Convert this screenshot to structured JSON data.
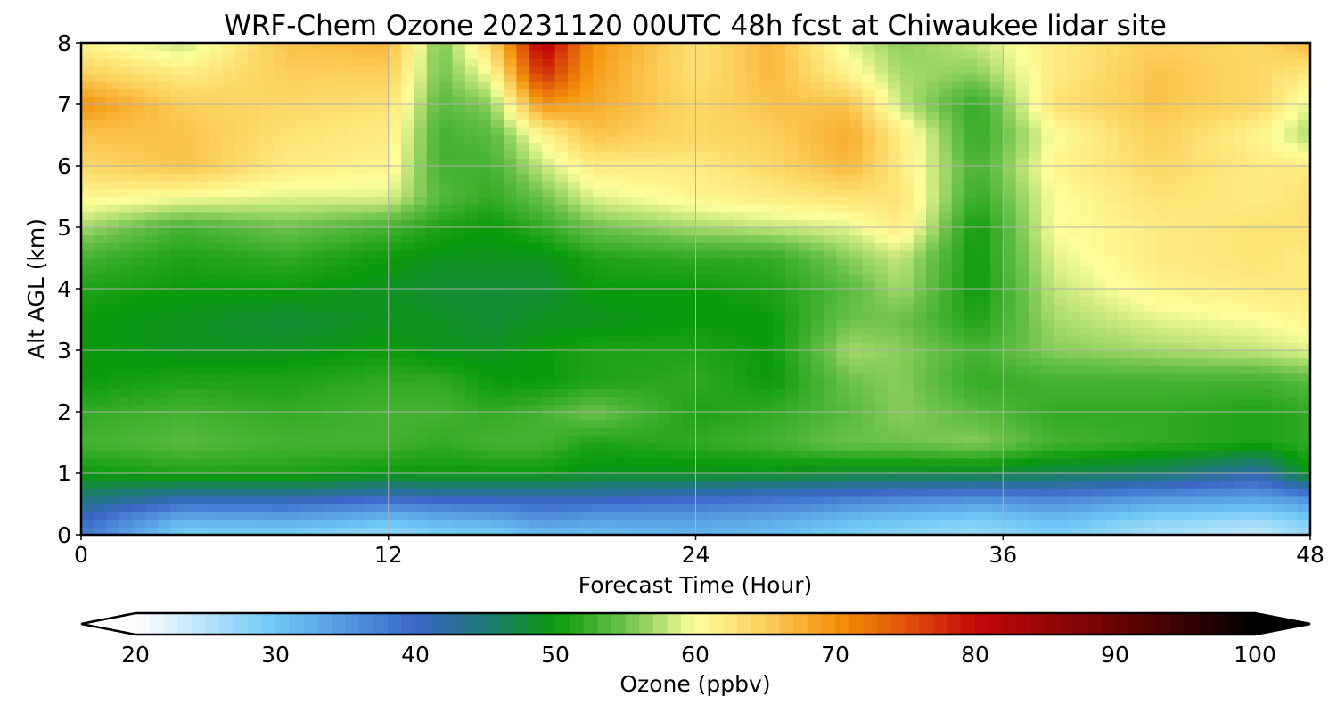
{
  "chart_data": {
    "type": "heatmap",
    "title": "WRF-Chem Ozone  20231120 00UTC 48h fcst at Chiwaukee lidar site",
    "xlabel": "Forecast Time (Hour)",
    "ylabel": "Alt AGL (km)",
    "xlim": [
      0,
      48
    ],
    "ylim": [
      0,
      8
    ],
    "x_ticks": [
      0,
      12,
      24,
      36,
      48
    ],
    "y_ticks": [
      0,
      1,
      2,
      3,
      4,
      5,
      6,
      7,
      8
    ],
    "grid": true,
    "colorbar": {
      "label": "Ozone  (ppbv)",
      "range": [
        20,
        100
      ],
      "ticks": [
        20,
        30,
        40,
        50,
        60,
        70,
        80,
        90,
        100
      ],
      "extend": "both",
      "stops": [
        {
          "v": 20,
          "c": "#ffffff"
        },
        {
          "v": 30,
          "c": "#6ec8f5"
        },
        {
          "v": 40,
          "c": "#3a66c8"
        },
        {
          "v": 45,
          "c": "#1f7a78"
        },
        {
          "v": 50,
          "c": "#0a9a0a"
        },
        {
          "v": 55,
          "c": "#6cc24a"
        },
        {
          "v": 60,
          "c": "#ffff9a"
        },
        {
          "v": 65,
          "c": "#fccf5a"
        },
        {
          "v": 70,
          "c": "#f4930a"
        },
        {
          "v": 75,
          "c": "#e0540a"
        },
        {
          "v": 80,
          "c": "#c40808"
        },
        {
          "v": 90,
          "c": "#6a0404"
        },
        {
          "v": 100,
          "c": "#000000"
        }
      ]
    },
    "x_hours": [
      0,
      4,
      8,
      12,
      14,
      16,
      18,
      20,
      24,
      27,
      30,
      32,
      35,
      38,
      42,
      46,
      48
    ],
    "y_km": [
      0,
      0.25,
      0.6,
      1,
      1.5,
      2,
      2.5,
      3,
      3.5,
      4,
      4.5,
      5,
      5.5,
      6,
      6.5,
      7,
      7.5,
      8
    ],
    "ozone_ppbv": [
      [
        38,
        29,
        29,
        27,
        29,
        29,
        31,
        31,
        32,
        31,
        29,
        28,
        27,
        29,
        26,
        24,
        27
      ],
      [
        40,
        32,
        33,
        31,
        32,
        33,
        35,
        34,
        34,
        33,
        31,
        30,
        29,
        31,
        28,
        27,
        29
      ],
      [
        45,
        42,
        42,
        40,
        41,
        41,
        41,
        41,
        40,
        39,
        38,
        37,
        36,
        37,
        35,
        34,
        36
      ],
      [
        50,
        51,
        51,
        50,
        50,
        50,
        50,
        49,
        49,
        49,
        48,
        48,
        48,
        47,
        46,
        42,
        50
      ],
      [
        53,
        54,
        53,
        53,
        52,
        53,
        53,
        51,
        52,
        53,
        55,
        55,
        56,
        53,
        52,
        51,
        52
      ],
      [
        52,
        53,
        52,
        53,
        53,
        52,
        53,
        55,
        51,
        52,
        54,
        56,
        54,
        52,
        52,
        51,
        52
      ],
      [
        50,
        51,
        51,
        52,
        52,
        50,
        50,
        51,
        52,
        50,
        55,
        56,
        52,
        53,
        53,
        53,
        54
      ],
      [
        50,
        49,
        49,
        50,
        49,
        49,
        50,
        51,
        51,
        50,
        57,
        56,
        53,
        56,
        57,
        58,
        59
      ],
      [
        50,
        49,
        48,
        49,
        49,
        48,
        49,
        49,
        50,
        50,
        55,
        55,
        51,
        57,
        59,
        60,
        61
      ],
      [
        51,
        50,
        50,
        49,
        48,
        48,
        48,
        50,
        50,
        51,
        54,
        57,
        50,
        58,
        61,
        62,
        62
      ],
      [
        53,
        51,
        52,
        50,
        49,
        49,
        49,
        51,
        52,
        52,
        56,
        58,
        50,
        59,
        62,
        63,
        62
      ],
      [
        57,
        53,
        55,
        53,
        51,
        50,
        52,
        55,
        57,
        58,
        59,
        62,
        50,
        60,
        62,
        63,
        63
      ],
      [
        61,
        60,
        59,
        59,
        54,
        52,
        55,
        59,
        61,
        62,
        63,
        63,
        52,
        60,
        63,
        62,
        63
      ],
      [
        64,
        66,
        62,
        61,
        53,
        53,
        58,
        62,
        62,
        64,
        67,
        62,
        53,
        61,
        64,
        62,
        62
      ],
      [
        66,
        66,
        63,
        62,
        53,
        54,
        61,
        66,
        64,
        65,
        68,
        62,
        52,
        60,
        65,
        61,
        57
      ],
      [
        70,
        65,
        64,
        63,
        54,
        56,
        70,
        68,
        64,
        66,
        66,
        58,
        52,
        63,
        66,
        64,
        59
      ],
      [
        65,
        62,
        65,
        65,
        55,
        60,
        78,
        69,
        63,
        67,
        61,
        57,
        56,
        62,
        66,
        64,
        62
      ],
      [
        61,
        58,
        66,
        67,
        55,
        64,
        82,
        70,
        63,
        67,
        59,
        56,
        58,
        62,
        65,
        64,
        67
      ]
    ]
  }
}
